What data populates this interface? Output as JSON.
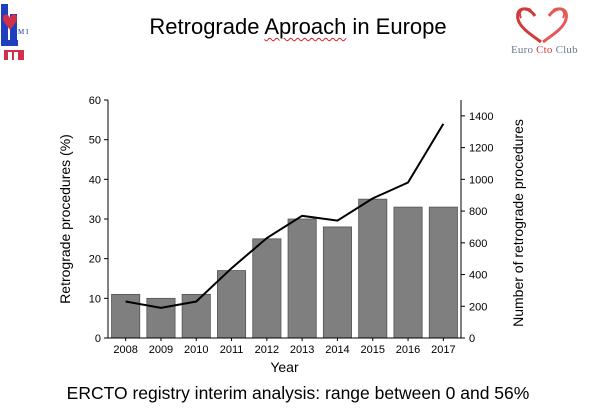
{
  "slide": {
    "title_prefix": "Retrograde ",
    "title_misspelled": "Aproach",
    "title_suffix": " in Europe",
    "footer": "ERCTO registry interim analysis: range between 0 and 56%"
  },
  "logos": {
    "left_mark_text": "M I",
    "right_text_prefix": "Euro ",
    "right_text_cto": "Cto",
    "right_text_suffix": " Club",
    "right_heart_color": "#d33a3a",
    "right_heart_color_2": "#e35a5a",
    "left_color_blue": "#1f3fbf",
    "left_color_red": "#d0304a"
  },
  "chart_data": {
    "type": "bar",
    "categories": [
      "2008",
      "2009",
      "2010",
      "2011",
      "2012",
      "2013",
      "2014",
      "2015",
      "2016",
      "2017"
    ],
    "series": [
      {
        "type": "bar",
        "axis": "left",
        "values": [
          11,
          10,
          11,
          17,
          25,
          30,
          28,
          35,
          33,
          33
        ],
        "color": "#7f7f7f"
      },
      {
        "type": "line",
        "axis": "right",
        "values": [
          230,
          190,
          230,
          440,
          630,
          770,
          740,
          880,
          980,
          1350
        ],
        "color": "#000000"
      }
    ],
    "xlabel": "Year",
    "ylabel": "Retrograde procedures (%)",
    "y2label": "Number of retrograde procedures",
    "ylim": [
      0,
      60
    ],
    "y2lim": [
      0,
      1500
    ],
    "yticks": [
      "0",
      "10",
      "20",
      "30",
      "40",
      "50",
      "60"
    ],
    "y2ticks": [
      "0",
      "200",
      "400",
      "600",
      "800",
      "1000",
      "1200",
      "1400"
    ],
    "grid": false
  }
}
